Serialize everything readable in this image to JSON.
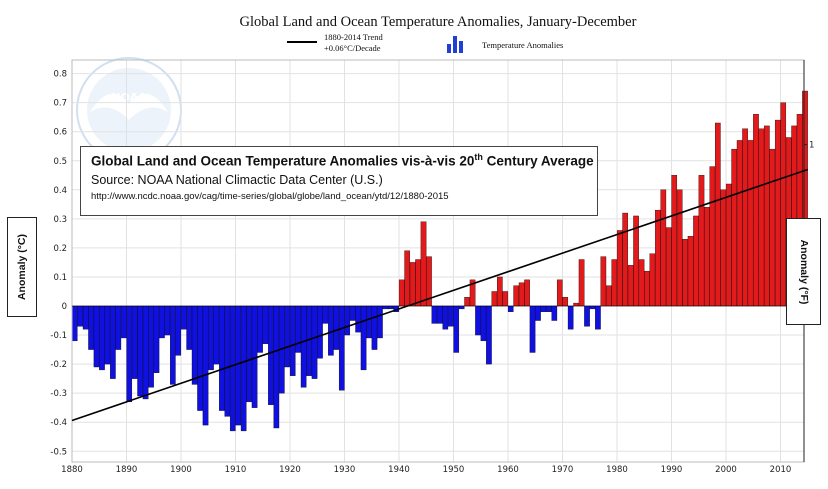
{
  "chart_data": {
    "type": "bar",
    "title": "Global Land and Ocean Temperature Anomalies, January-December",
    "legend": [
      {
        "name": "1880-2014 Trend +0.06°C/Decade",
        "symbol": "line",
        "color": "#000000"
      },
      {
        "name": "Temperature Anomalies",
        "symbol": "bars",
        "color": "#1f3fd6"
      }
    ],
    "legend_trend_line1": "1880-2014 Trend",
    "legend_trend_line2": "+0.06°C/Decade",
    "legend_bars_label": "Temperature Anomalies",
    "ylabel_left": "Anomaly (°C)",
    "ylabel_right": "Anomaly (°F)",
    "ylim": [
      -0.5,
      0.8
    ],
    "yticks_left": [
      0.8,
      0.7,
      0.6,
      0.5,
      0.4,
      0.3,
      0.2,
      0.1,
      0,
      -0.1,
      -0.2,
      -0.3,
      -0.4,
      -0.5
    ],
    "yticks_right": [
      {
        "label": "1",
        "value_c": 0.5556
      }
    ],
    "xlim": [
      1880,
      2015
    ],
    "xticks": [
      1880,
      1890,
      1900,
      1910,
      1920,
      1930,
      1940,
      1950,
      1960,
      1970,
      1980,
      1990,
      2000,
      2010
    ],
    "grid": true,
    "colors": {
      "positive": "#e31a1c",
      "negative": "#1010e0",
      "edge": "#000000"
    },
    "x": [
      1880,
      1881,
      1882,
      1883,
      1884,
      1885,
      1886,
      1887,
      1888,
      1889,
      1890,
      1891,
      1892,
      1893,
      1894,
      1895,
      1896,
      1897,
      1898,
      1899,
      1900,
      1901,
      1902,
      1903,
      1904,
      1905,
      1906,
      1907,
      1908,
      1909,
      1910,
      1911,
      1912,
      1913,
      1914,
      1915,
      1916,
      1917,
      1918,
      1919,
      1920,
      1921,
      1922,
      1923,
      1924,
      1925,
      1926,
      1927,
      1928,
      1929,
      1930,
      1931,
      1932,
      1933,
      1934,
      1935,
      1936,
      1937,
      1938,
      1939,
      1940,
      1941,
      1942,
      1943,
      1944,
      1945,
      1946,
      1947,
      1948,
      1949,
      1950,
      1951,
      1952,
      1953,
      1954,
      1955,
      1956,
      1957,
      1958,
      1959,
      1960,
      1961,
      1962,
      1963,
      1964,
      1965,
      1966,
      1967,
      1968,
      1969,
      1970,
      1971,
      1972,
      1973,
      1974,
      1975,
      1976,
      1977,
      1978,
      1979,
      1980,
      1981,
      1982,
      1983,
      1984,
      1985,
      1986,
      1987,
      1988,
      1989,
      1990,
      1991,
      1992,
      1993,
      1994,
      1995,
      1996,
      1997,
      1998,
      1999,
      2000,
      2001,
      2002,
      2003,
      2004,
      2005,
      2006,
      2007,
      2008,
      2009,
      2010,
      2011,
      2012,
      2013,
      2014
    ],
    "values": [
      -0.12,
      -0.07,
      -0.08,
      -0.15,
      -0.21,
      -0.22,
      -0.2,
      -0.25,
      -0.15,
      -0.11,
      -0.33,
      -0.25,
      -0.31,
      -0.32,
      -0.28,
      -0.23,
      -0.11,
      -0.1,
      -0.27,
      -0.17,
      -0.08,
      -0.15,
      -0.27,
      -0.36,
      -0.41,
      -0.22,
      -0.2,
      -0.36,
      -0.38,
      -0.43,
      -0.41,
      -0.43,
      -0.33,
      -0.35,
      -0.16,
      -0.13,
      -0.34,
      -0.42,
      -0.3,
      -0.21,
      -0.24,
      -0.16,
      -0.28,
      -0.24,
      -0.25,
      -0.18,
      -0.06,
      -0.17,
      -0.15,
      -0.29,
      -0.1,
      -0.05,
      -0.09,
      -0.22,
      -0.11,
      -0.15,
      -0.11,
      -0.01,
      -0.01,
      -0.02,
      0.09,
      0.19,
      0.15,
      0.16,
      0.29,
      0.17,
      -0.06,
      -0.06,
      -0.08,
      -0.07,
      -0.16,
      -0.01,
      0.03,
      0.09,
      -0.1,
      -0.12,
      -0.2,
      0.05,
      0.1,
      0.05,
      -0.02,
      0.07,
      0.08,
      0.09,
      -0.16,
      -0.05,
      -0.02,
      -0.02,
      -0.05,
      0.09,
      0.03,
      -0.08,
      0.01,
      0.16,
      -0.07,
      -0.01,
      -0.08,
      0.17,
      0.07,
      0.16,
      0.26,
      0.32,
      0.14,
      0.31,
      0.16,
      0.12,
      0.18,
      0.33,
      0.4,
      0.27,
      0.45,
      0.4,
      0.23,
      0.24,
      0.31,
      0.45,
      0.34,
      0.48,
      0.63,
      0.4,
      0.42,
      0.54,
      0.57,
      0.61,
      0.57,
      0.66,
      0.61,
      0.62,
      0.54,
      0.64,
      0.7,
      0.58,
      0.62,
      0.66,
      0.74
    ],
    "trend": {
      "x": [
        1880,
        2014
      ],
      "y": [
        -0.394,
        0.47
      ]
    },
    "annotation": {
      "title_main": "Global Land and Ocean Temperature Anomalies vis-à-vis 20",
      "title_sup": "th",
      "title_end": " Century Average",
      "source": "Source: NOAA National Climactic Data Center (U.S.)",
      "url": "http://www.ncdc.noaa.gov/cag/time-series/global/globe/land_ocean/ytd/12/1880-2015"
    },
    "logo_text": "NOAA"
  }
}
